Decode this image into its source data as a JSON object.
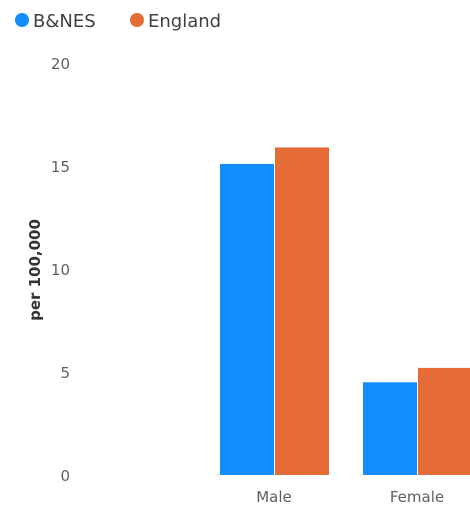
{
  "chart_data": {
    "type": "bar",
    "title": "",
    "xlabel": "",
    "ylabel": "per 100,000",
    "categories": [
      "Male",
      "Female"
    ],
    "series": [
      {
        "name": "B&NES",
        "color": "#118DFF",
        "values": [
          15.1,
          4.5
        ]
      },
      {
        "name": "England",
        "color": "#E66C37",
        "values": [
          15.9,
          5.2
        ]
      }
    ],
    "ylim": [
      0,
      20
    ],
    "yticks": [
      "0",
      "5",
      "10",
      "15",
      "20"
    ],
    "grid": false,
    "legend": "top-left"
  }
}
